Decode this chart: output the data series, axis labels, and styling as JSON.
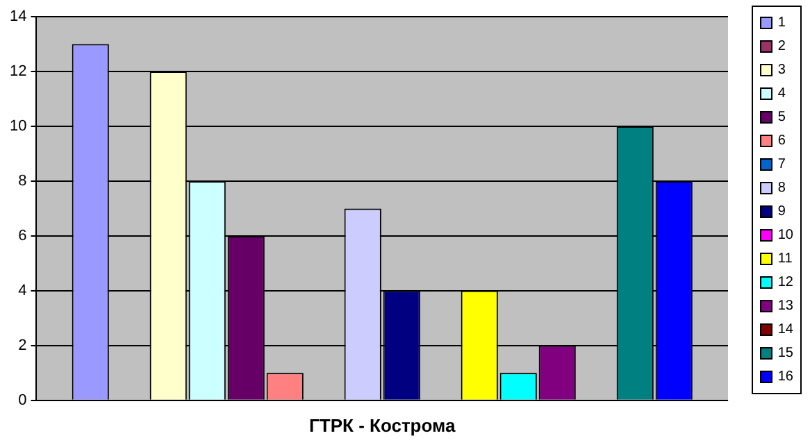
{
  "chart_data": {
    "type": "bar",
    "categories": [
      "ГТРК - Кострома"
    ],
    "ylim": [
      0,
      14
    ],
    "yticks": [
      0,
      2,
      4,
      6,
      8,
      10,
      12,
      14
    ],
    "grid": "y",
    "legend": "right",
    "series": [
      {
        "name": "1",
        "color": "#9999ff",
        "values": [
          13
        ]
      },
      {
        "name": "2",
        "color": "#993366",
        "values": [
          0
        ]
      },
      {
        "name": "3",
        "color": "#ffffcc",
        "values": [
          12
        ]
      },
      {
        "name": "4",
        "color": "#ccffff",
        "values": [
          8
        ]
      },
      {
        "name": "5",
        "color": "#660066",
        "values": [
          6
        ]
      },
      {
        "name": "6",
        "color": "#ff8080",
        "values": [
          1
        ]
      },
      {
        "name": "7",
        "color": "#0066cc",
        "values": [
          0
        ]
      },
      {
        "name": "8",
        "color": "#ccccff",
        "values": [
          7
        ]
      },
      {
        "name": "9",
        "color": "#000080",
        "values": [
          4
        ]
      },
      {
        "name": "10",
        "color": "#ff00ff",
        "values": [
          0
        ]
      },
      {
        "name": "11",
        "color": "#ffff00",
        "values": [
          4
        ]
      },
      {
        "name": "12",
        "color": "#00ffff",
        "values": [
          1
        ]
      },
      {
        "name": "13",
        "color": "#800080",
        "values": [
          2
        ]
      },
      {
        "name": "14",
        "color": "#800000",
        "values": [
          0
        ]
      },
      {
        "name": "15",
        "color": "#008080",
        "values": [
          10
        ]
      },
      {
        "name": "16",
        "color": "#0000ff",
        "values": [
          8
        ]
      }
    ]
  }
}
